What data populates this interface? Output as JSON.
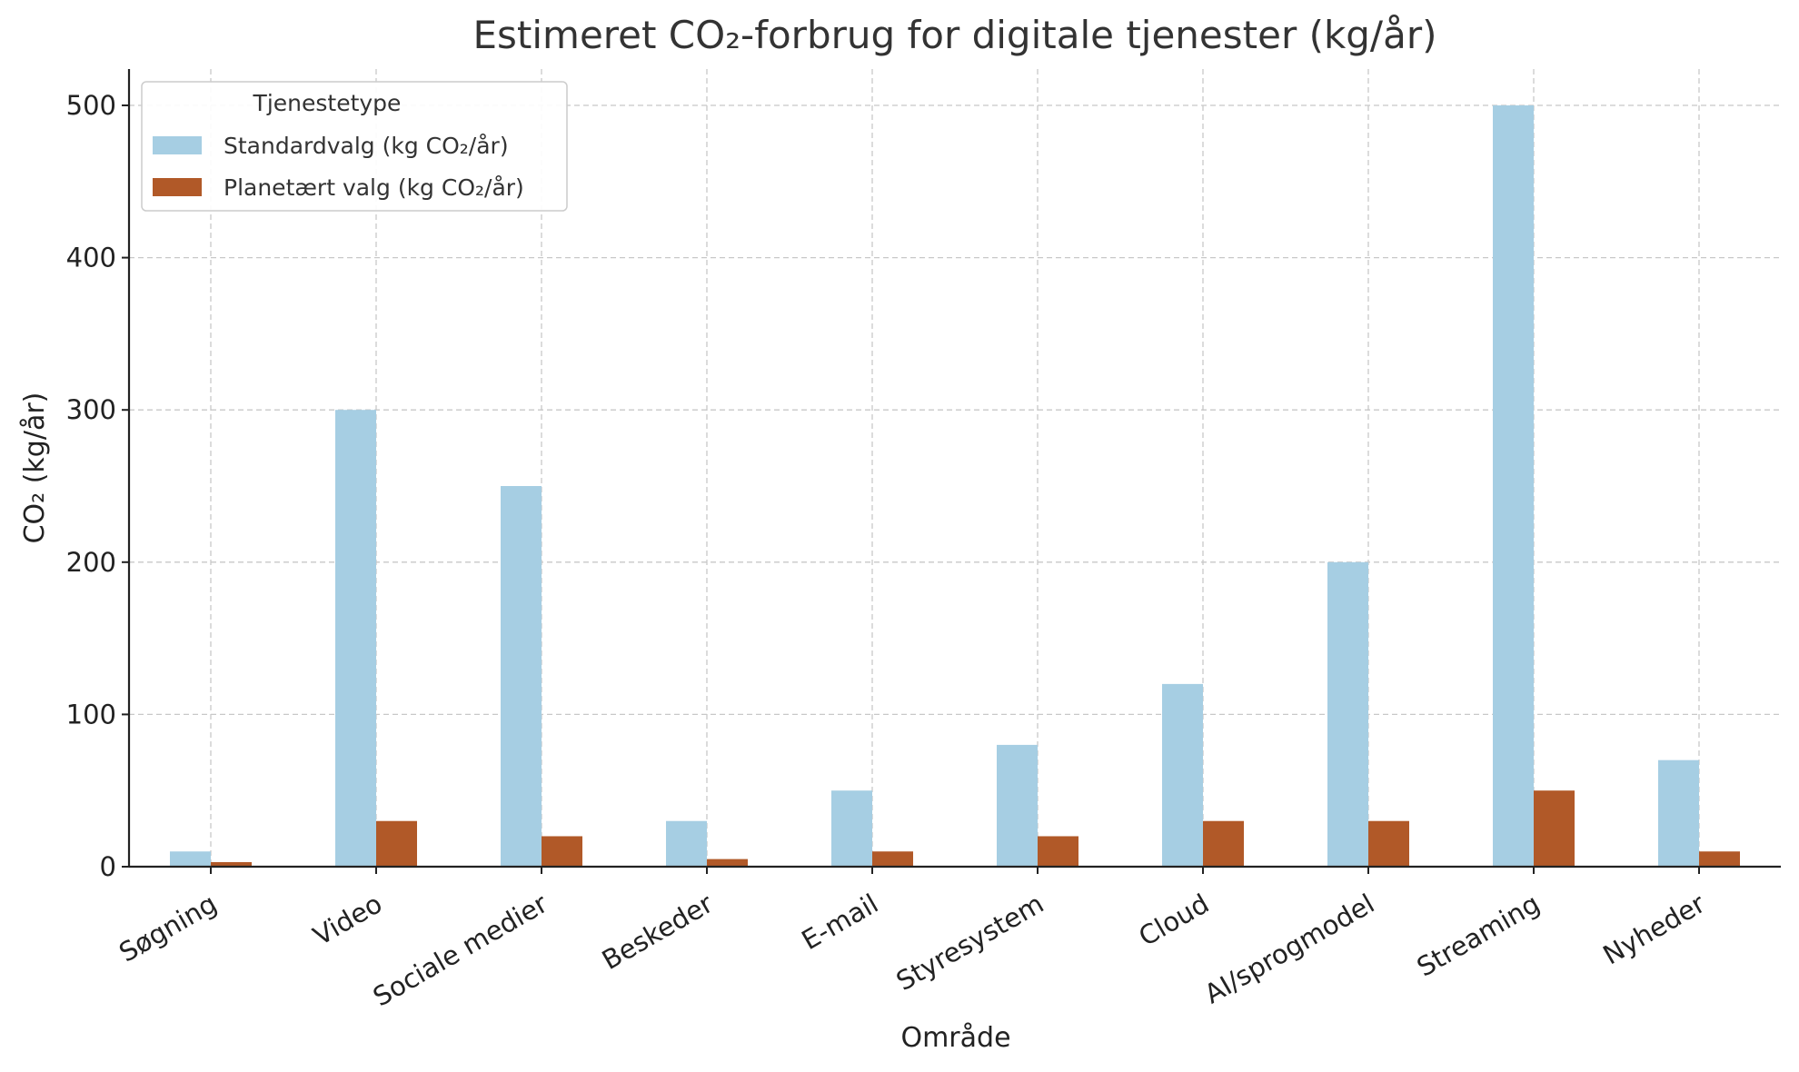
{
  "chart_data": {
    "type": "bar",
    "title": "Estimeret CO₂-forbrug for digitale tjenester (kg/år)",
    "xlabel": "Område",
    "ylabel": "CO₂ (kg/år)",
    "ylim": [
      0,
      525
    ],
    "yticks": [
      0,
      100,
      200,
      300,
      400,
      500
    ],
    "grid": true,
    "legend": {
      "title": "Tjenestetype",
      "placement": "top-left"
    },
    "categories": [
      "Søgning",
      "Video",
      "Sociale medier",
      "Beskeder",
      "E-mail",
      "Styresystem",
      "Cloud",
      "AI/sprogmodel",
      "Streaming",
      "Nyheder"
    ],
    "series": [
      {
        "name": "Standardvalg (kg CO₂/år)",
        "color": "#a6cee3",
        "values": [
          10,
          300,
          250,
          30,
          50,
          80,
          120,
          200,
          500,
          70
        ]
      },
      {
        "name": "Planetært valg (kg CO₂/år)",
        "color": "#b15928",
        "values": [
          3,
          30,
          20,
          5,
          10,
          20,
          30,
          30,
          50,
          10
        ]
      }
    ]
  }
}
